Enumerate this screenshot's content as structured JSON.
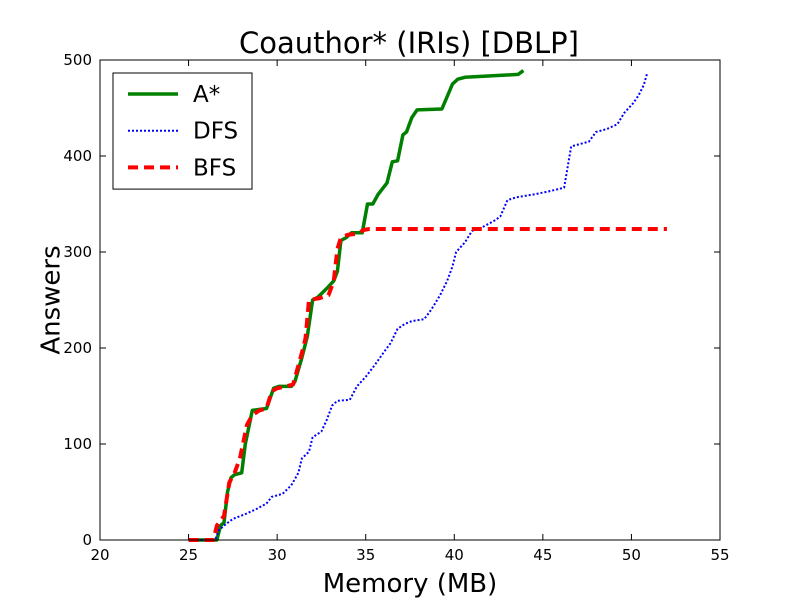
{
  "chart_data": {
    "type": "line",
    "title": "Coauthor* (IRIs) [DBLP]",
    "xlabel": "Memory (MB)",
    "ylabel": "Answers",
    "xlim": [
      20,
      55
    ],
    "ylim": [
      0,
      500
    ],
    "xticks": [
      20,
      25,
      30,
      35,
      40,
      45,
      50,
      55
    ],
    "yticks": [
      0,
      100,
      200,
      300,
      400,
      500
    ],
    "grid": false,
    "legend_position": "top-left",
    "series": [
      {
        "name": "A*",
        "color": "#008000",
        "style": "solid",
        "points": [
          [
            25.5,
            0
          ],
          [
            26.6,
            0
          ],
          [
            26.8,
            15
          ],
          [
            27.0,
            18
          ],
          [
            27.2,
            50
          ],
          [
            27.4,
            65
          ],
          [
            27.6,
            68
          ],
          [
            28.0,
            70
          ],
          [
            28.2,
            100
          ],
          [
            28.6,
            135
          ],
          [
            29.4,
            137
          ],
          [
            29.8,
            158
          ],
          [
            30.1,
            160
          ],
          [
            30.8,
            160
          ],
          [
            31.0,
            165
          ],
          [
            31.4,
            190
          ],
          [
            31.7,
            212
          ],
          [
            32.0,
            250
          ],
          [
            32.3,
            253
          ],
          [
            32.8,
            262
          ],
          [
            33.2,
            270
          ],
          [
            33.4,
            280
          ],
          [
            33.6,
            312
          ],
          [
            33.9,
            315
          ],
          [
            34.2,
            320
          ],
          [
            34.8,
            320
          ],
          [
            35.1,
            350
          ],
          [
            35.4,
            350
          ],
          [
            35.7,
            360
          ],
          [
            36.2,
            372
          ],
          [
            36.5,
            394
          ],
          [
            36.8,
            395
          ],
          [
            37.1,
            422
          ],
          [
            37.3,
            425
          ],
          [
            37.6,
            440
          ],
          [
            37.9,
            448
          ],
          [
            39.3,
            449
          ],
          [
            39.6,
            462
          ],
          [
            39.9,
            475
          ],
          [
            40.2,
            480
          ],
          [
            40.6,
            482
          ],
          [
            43.6,
            485
          ],
          [
            43.9,
            489
          ]
        ]
      },
      {
        "name": "DFS",
        "color": "#0000ff",
        "style": "dotted",
        "points": [
          [
            25.0,
            0
          ],
          [
            26.5,
            0
          ],
          [
            26.7,
            10
          ],
          [
            27.0,
            15
          ],
          [
            27.5,
            22
          ],
          [
            28.2,
            27
          ],
          [
            28.8,
            32
          ],
          [
            29.4,
            38
          ],
          [
            29.7,
            45
          ],
          [
            30.3,
            48
          ],
          [
            30.8,
            57
          ],
          [
            31.2,
            70
          ],
          [
            31.4,
            85
          ],
          [
            31.8,
            92
          ],
          [
            32.0,
            107
          ],
          [
            32.5,
            113
          ],
          [
            32.8,
            125
          ],
          [
            33.1,
            140
          ],
          [
            33.4,
            145
          ],
          [
            34.1,
            146
          ],
          [
            34.5,
            160
          ],
          [
            35.0,
            170
          ],
          [
            35.5,
            182
          ],
          [
            36.0,
            195
          ],
          [
            36.4,
            205
          ],
          [
            36.8,
            220
          ],
          [
            37.2,
            225
          ],
          [
            37.6,
            228
          ],
          [
            38.3,
            230
          ],
          [
            38.7,
            240
          ],
          [
            39.2,
            255
          ],
          [
            39.6,
            270
          ],
          [
            39.9,
            285
          ],
          [
            40.1,
            300
          ],
          [
            40.6,
            310
          ],
          [
            41.0,
            322
          ],
          [
            41.5,
            325
          ],
          [
            42.3,
            333
          ],
          [
            42.6,
            337
          ],
          [
            43.0,
            354
          ],
          [
            43.5,
            357
          ],
          [
            44.5,
            360
          ],
          [
            45.3,
            363
          ],
          [
            46.2,
            367
          ],
          [
            46.6,
            410
          ],
          [
            47.0,
            412
          ],
          [
            47.6,
            415
          ],
          [
            48.0,
            425
          ],
          [
            48.6,
            428
          ],
          [
            49.2,
            433
          ],
          [
            49.6,
            445
          ],
          [
            50.1,
            455
          ],
          [
            50.4,
            463
          ],
          [
            50.7,
            474
          ],
          [
            50.9,
            487
          ]
        ]
      },
      {
        "name": "BFS",
        "color": "#ff0000",
        "style": "dashed",
        "points": [
          [
            25.0,
            0
          ],
          [
            26.4,
            0
          ],
          [
            26.6,
            15
          ],
          [
            27.0,
            25
          ],
          [
            27.3,
            60
          ],
          [
            27.6,
            70
          ],
          [
            27.9,
            85
          ],
          [
            28.3,
            120
          ],
          [
            28.6,
            130
          ],
          [
            29.0,
            135
          ],
          [
            29.4,
            137
          ],
          [
            29.7,
            155
          ],
          [
            30.0,
            158
          ],
          [
            30.5,
            160
          ],
          [
            30.9,
            162
          ],
          [
            31.4,
            195
          ],
          [
            31.6,
            210
          ],
          [
            31.8,
            250
          ],
          [
            32.4,
            252
          ],
          [
            32.9,
            255
          ],
          [
            33.2,
            270
          ],
          [
            33.4,
            303
          ],
          [
            33.6,
            315
          ],
          [
            34.0,
            318
          ],
          [
            34.5,
            319
          ],
          [
            34.9,
            323
          ],
          [
            35.2,
            324
          ],
          [
            52.0,
            324
          ]
        ]
      }
    ]
  }
}
